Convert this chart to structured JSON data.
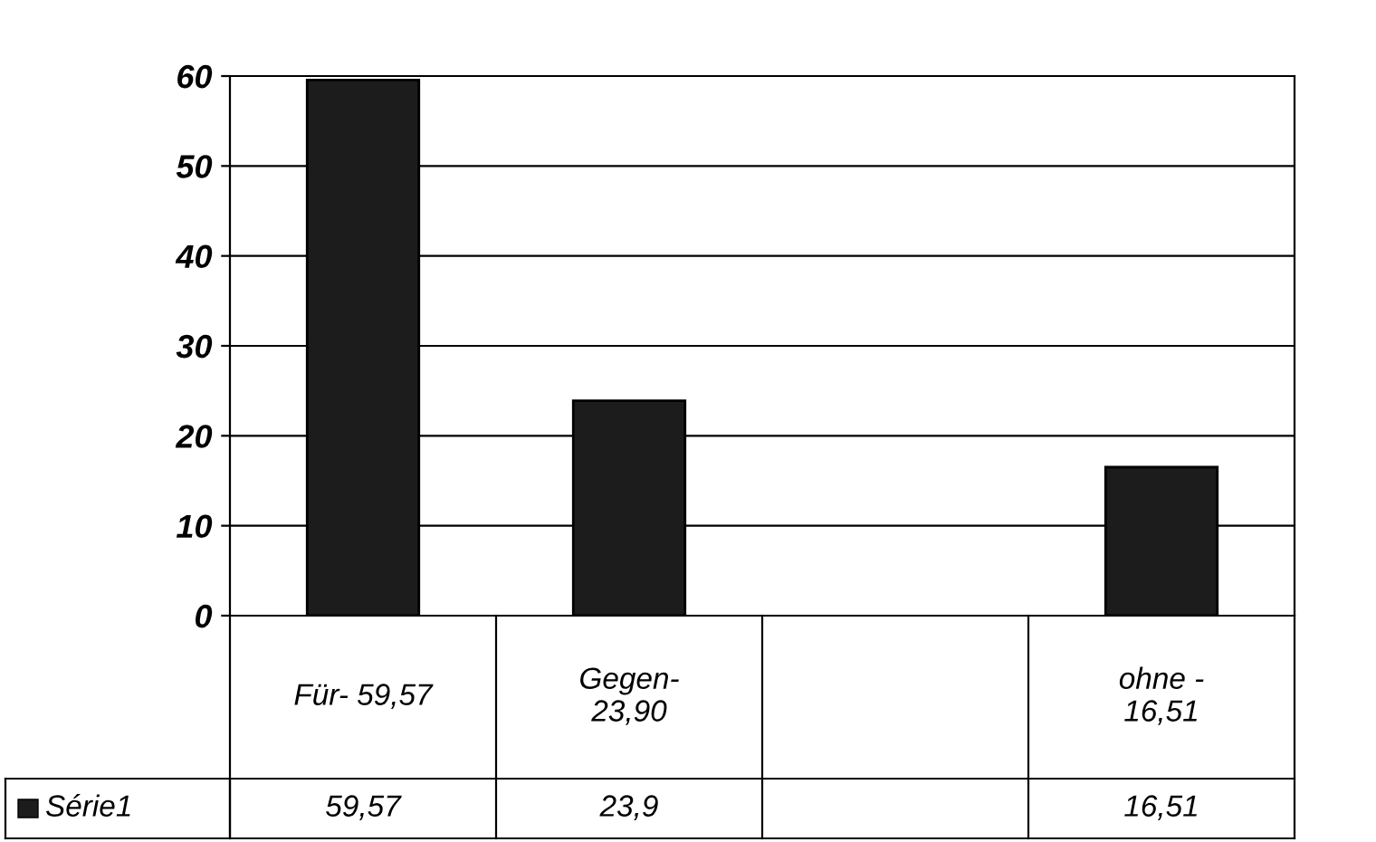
{
  "chart_data": {
    "type": "bar",
    "categories": [
      "Für- 59,57",
      "Gegen-\n23,90",
      null,
      "ohne -\n16,51"
    ],
    "series": [
      {
        "name": "Série1",
        "color": "#1c1c1c",
        "values": [
          59.57,
          23.9,
          null,
          16.51
        ],
        "value_labels": [
          "59,57",
          "23,9",
          null,
          "16,51"
        ]
      }
    ],
    "ylim": [
      0,
      60
    ],
    "yticks": [
      0,
      10,
      20,
      30,
      40,
      50,
      60
    ],
    "grid": "y",
    "legend": "bottom left"
  }
}
